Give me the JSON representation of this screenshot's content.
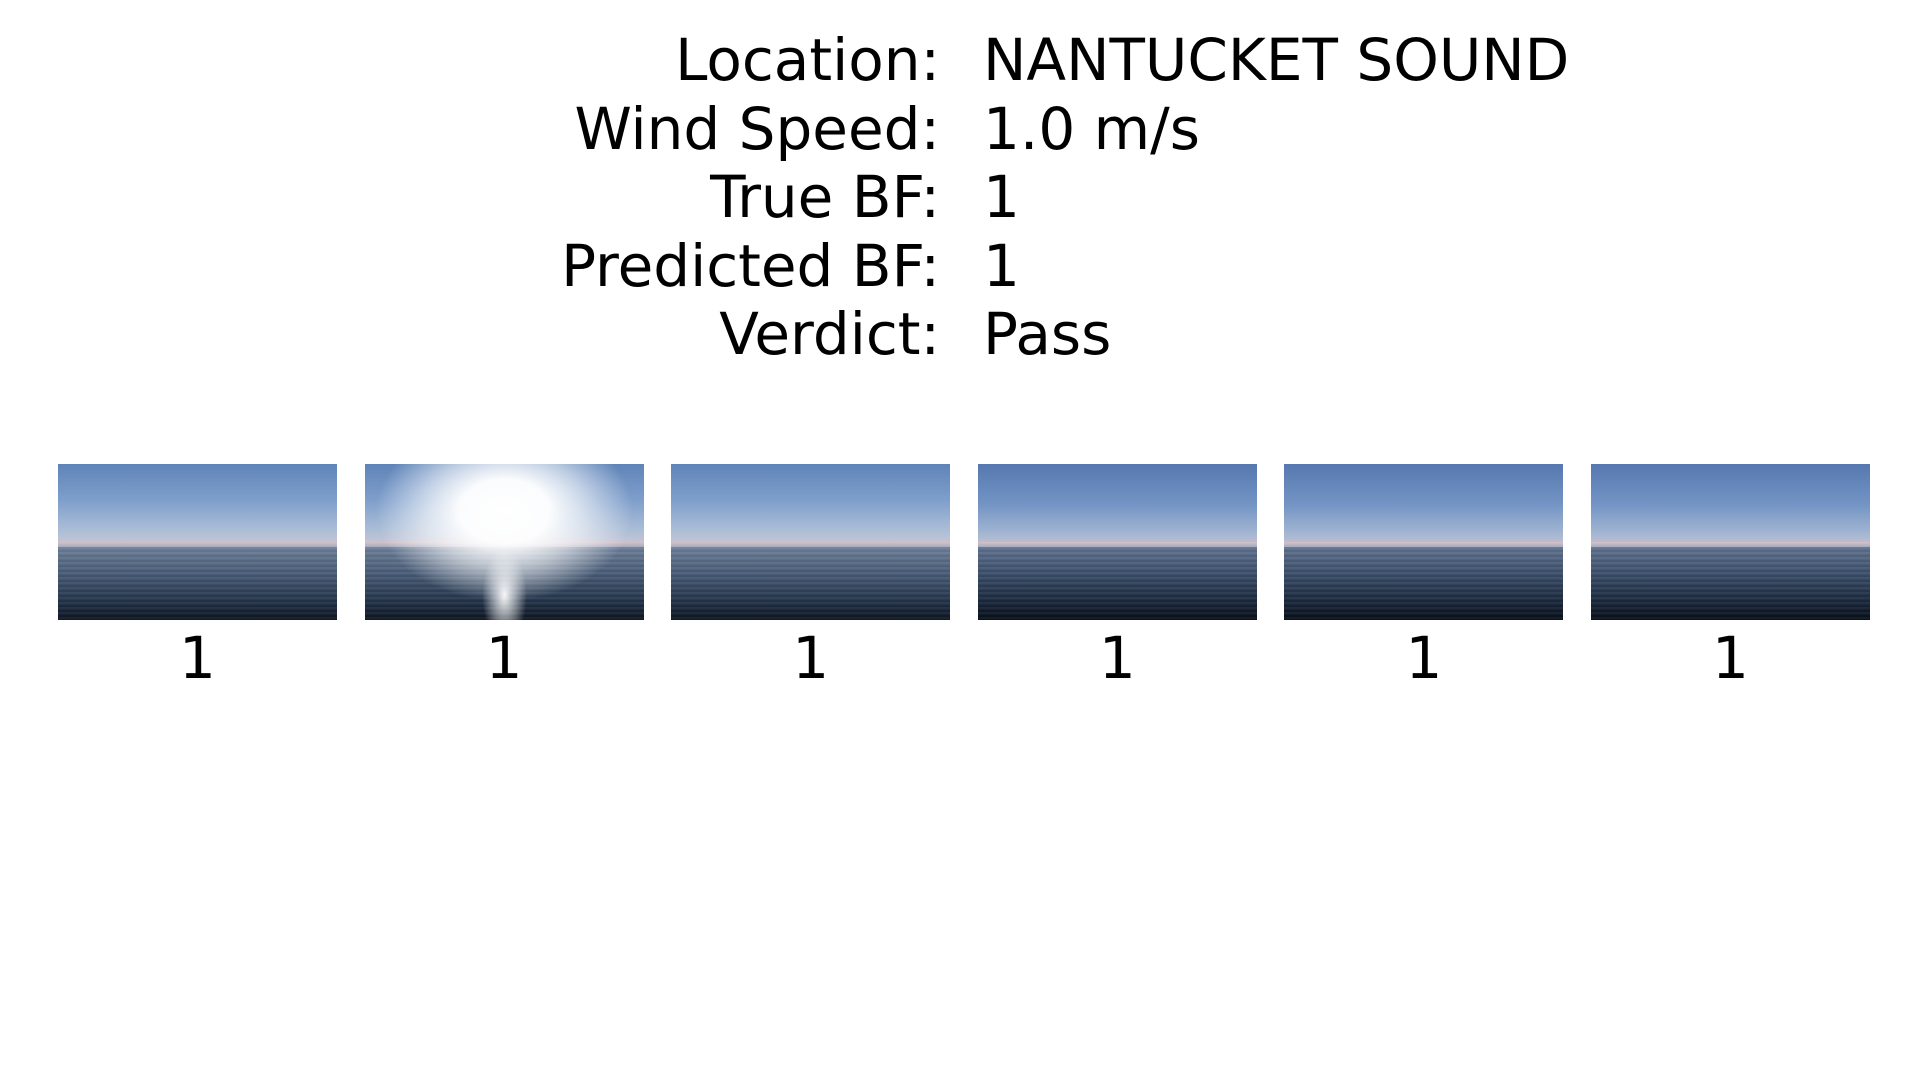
{
  "info": [
    {
      "label": "Location:",
      "value": "NANTUCKET SOUND"
    },
    {
      "label": "Wind Speed:",
      "value": "1.0 m/s"
    },
    {
      "label": "True BF:",
      "value": "1"
    },
    {
      "label": "Predicted BF:",
      "value": "1"
    },
    {
      "label": "Verdict:",
      "value": "Pass"
    }
  ],
  "frames": [
    {
      "label": "1"
    },
    {
      "label": "1"
    },
    {
      "label": "1"
    },
    {
      "label": "1"
    },
    {
      "label": "1"
    },
    {
      "label": "1"
    }
  ]
}
